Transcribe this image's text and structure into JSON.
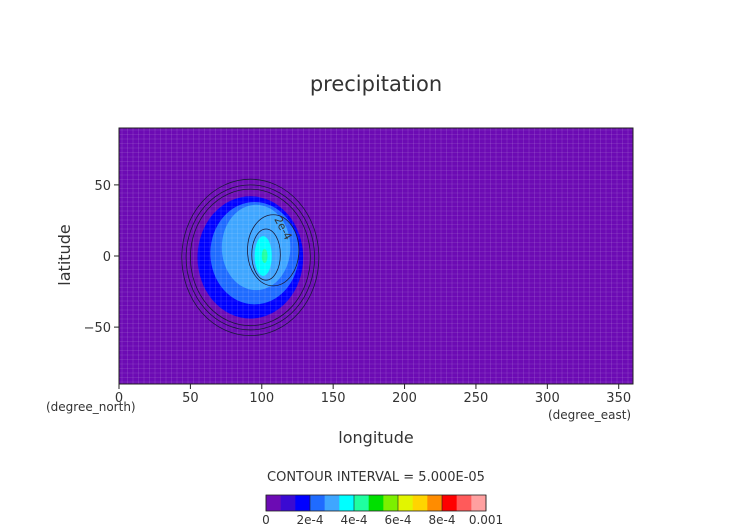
{
  "chart_data": {
    "type": "heatmap",
    "title": "precipitation",
    "xlabel": "longitude",
    "ylabel": "latitude",
    "x_units": "(degree_east)",
    "y_units": "(degree_north)",
    "xlim": [
      0,
      360
    ],
    "ylim": [
      -90,
      90
    ],
    "x_ticks": [
      0,
      50,
      100,
      150,
      200,
      250,
      300,
      350
    ],
    "y_ticks": [
      50,
      0,
      -50
    ],
    "contour_interval_text": "CONTOUR INTERVAL = 5.000E-05",
    "contour_label": "2e-4",
    "colorbar": {
      "labels": [
        "0",
        "2e-4",
        "4e-4",
        "6e-4",
        "8e-4",
        "0.001"
      ],
      "label_values": [
        0,
        0.0002,
        0.0004,
        0.0006,
        0.0008,
        0.001
      ],
      "min": 0,
      "max": 0.001,
      "colors": [
        "#6c0bb4",
        "#3a0ad2",
        "#0000ff",
        "#1f6bff",
        "#3fa6ff",
        "#00ffff",
        "#1fffa0",
        "#00e000",
        "#7cf000",
        "#e2f500",
        "#ffd400",
        "#ff8c00",
        "#ff0000",
        "#ff5a5a",
        "#ffa0a0"
      ]
    },
    "regions": [
      {
        "name": "background",
        "value": 1e-05,
        "center": [
          180,
          0
        ],
        "semi_axes": [
          180,
          90
        ],
        "color": "#6c0bb4"
      },
      {
        "name": "blue-band",
        "value": 0.0001,
        "center": [
          92,
          -1
        ],
        "semi_axes": [
          37,
          43
        ],
        "color": "#0000ff"
      },
      {
        "name": "mid-blue",
        "value": 0.00015,
        "center": [
          95,
          2
        ],
        "semi_axes": [
          31,
          36
        ],
        "color": "#1f6bff"
      },
      {
        "name": "light-blue",
        "value": 0.00025,
        "center": [
          96,
          6
        ],
        "semi_axes": [
          24,
          30
        ],
        "color": "#3fa6ff"
      },
      {
        "name": "cyan-core",
        "value": 0.0004,
        "center": [
          101,
          0
        ],
        "semi_axes": [
          6,
          14
        ],
        "color": "#00ffff"
      },
      {
        "name": "maximum",
        "value": 0.00045,
        "center": [
          102,
          0
        ],
        "semi_axes": [
          2,
          5
        ],
        "color": "#1fffa0"
      }
    ],
    "contour_lines": [
      {
        "center": [
          92,
          -1
        ],
        "semi_axes": [
          48,
          55
        ]
      },
      {
        "center": [
          92,
          -1
        ],
        "semi_axes": [
          45,
          51
        ]
      },
      {
        "center": [
          92,
          -1
        ],
        "semi_axes": [
          42,
          48
        ]
      },
      {
        "center": [
          108,
          4
        ],
        "semi_axes": [
          18,
          25
        ]
      },
      {
        "center": [
          103,
          1
        ],
        "semi_axes": [
          10,
          18
        ]
      }
    ]
  }
}
